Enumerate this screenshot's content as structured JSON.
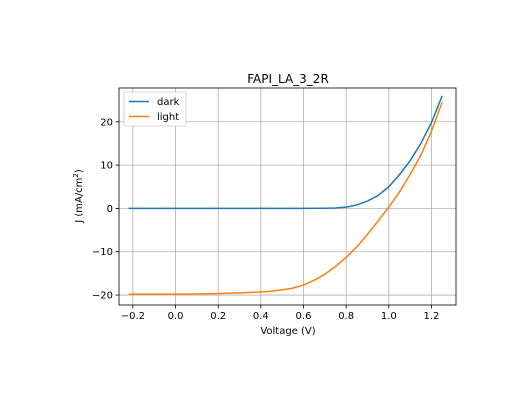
{
  "chart_data": {
    "type": "line",
    "title": "FAPI_LA_3_2R",
    "xlabel": "Voltage (V)",
    "ylabel_main": "J (mA/cm",
    "ylabel_sup": "2",
    "ylabel_close": ")",
    "xlim": [
      -0.265,
      1.315
    ],
    "ylim": [
      -22.3,
      27.8
    ],
    "xticks": [
      -0.2,
      0.0,
      0.2,
      0.4,
      0.6,
      0.8,
      1.0,
      1.2
    ],
    "xtick_labels": [
      "−0.2",
      "0.0",
      "0.2",
      "0.4",
      "0.6",
      "0.8",
      "1.0",
      "1.2"
    ],
    "yticks": [
      -20,
      -10,
      0,
      10,
      20
    ],
    "ytick_labels": [
      "−20",
      "−10",
      "0",
      "10",
      "20"
    ],
    "grid": true,
    "legend_position": "upper-left",
    "series": [
      {
        "name": "dark",
        "color": "#1f77b4",
        "x": [
          -0.22,
          0.0,
          0.2,
          0.4,
          0.6,
          0.7,
          0.75,
          0.8,
          0.85,
          0.9,
          0.95,
          1.0,
          1.05,
          1.1,
          1.15,
          1.2,
          1.25
        ],
        "y": [
          0.0,
          0.0,
          0.0,
          0.0,
          0.0,
          0.03,
          0.1,
          0.3,
          0.8,
          1.7,
          3.0,
          5.0,
          7.8,
          11.0,
          15.0,
          19.8,
          26.0
        ]
      },
      {
        "name": "light",
        "color": "#ff7f0e",
        "x": [
          -0.22,
          -0.1,
          0.0,
          0.1,
          0.2,
          0.3,
          0.4,
          0.45,
          0.5,
          0.55,
          0.6,
          0.65,
          0.7,
          0.75,
          0.8,
          0.85,
          0.9,
          0.95,
          1.0,
          1.05,
          1.1,
          1.15,
          1.2,
          1.25
        ],
        "y": [
          -19.8,
          -19.8,
          -19.8,
          -19.75,
          -19.65,
          -19.5,
          -19.3,
          -19.1,
          -18.8,
          -18.4,
          -17.7,
          -16.6,
          -15.2,
          -13.4,
          -11.3,
          -8.9,
          -6.0,
          -2.9,
          0.3,
          3.8,
          7.8,
          12.3,
          17.8,
          24.5
        ]
      }
    ]
  }
}
